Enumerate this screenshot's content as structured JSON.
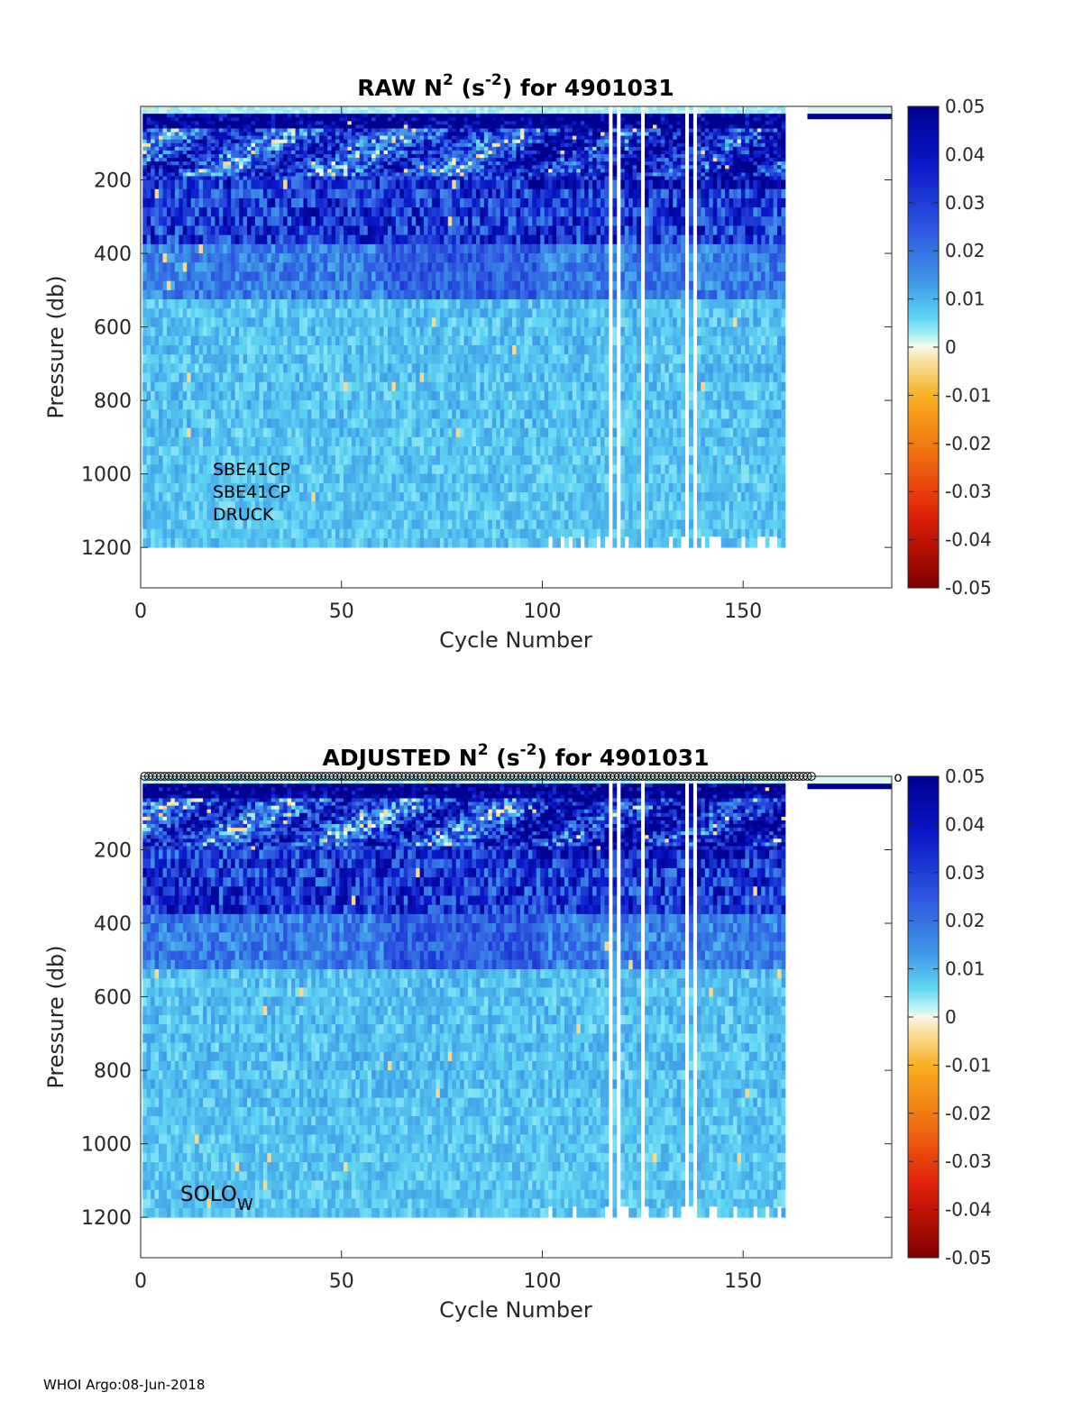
{
  "footer": "WHOI Argo:08-Jun-2018",
  "colorbar": {
    "ticks": [
      "0.05",
      "0.04",
      "0.03",
      "0.02",
      "0.01",
      "0",
      "-0.01",
      "-0.02",
      "-0.03",
      "-0.04",
      "-0.05"
    ],
    "clim": [
      -0.05,
      0.05
    ]
  },
  "chart_data": [
    {
      "type": "heatmap",
      "title_main": "RAW N",
      "title_sup1": "2",
      "title_mid": " (s",
      "title_sup2": "-2",
      "title_end": ") for 4901031",
      "xlabel": "Cycle Number",
      "ylabel": "Pressure (db)",
      "xlim": [
        0,
        187
      ],
      "ylim": [
        1310,
        0
      ],
      "xticks": [
        "0",
        "50",
        "100",
        "150"
      ],
      "yticks": [
        "200",
        "400",
        "600",
        "800",
        "1000",
        "1200"
      ],
      "annotations": [
        "SBE41CP",
        "SBE41CP",
        "DRUCK"
      ],
      "colormap": "blue-cyan-white-yellow-red",
      "data_extent": {
        "last_cycle": 160,
        "max_pressure": 1210
      }
    },
    {
      "type": "heatmap",
      "title_main": "ADJUSTED N",
      "title_sup1": "2",
      "title_mid": " (s",
      "title_sup2": "-2",
      "title_end": ") for 4901031",
      "xlabel": "Cycle Number",
      "ylabel": "Pressure (db)",
      "xlim": [
        0,
        187
      ],
      "ylim": [
        1310,
        0
      ],
      "xticks": [
        "0",
        "50",
        "100",
        "150"
      ],
      "yticks": [
        "200",
        "400",
        "600",
        "800",
        "1000",
        "1200"
      ],
      "annotation_main": "SOLO",
      "annotation_sub": "W",
      "qc_marker": "o",
      "colormap": "blue-cyan-white-yellow-red",
      "data_extent": {
        "last_cycle": 160,
        "max_pressure": 1210
      }
    }
  ]
}
